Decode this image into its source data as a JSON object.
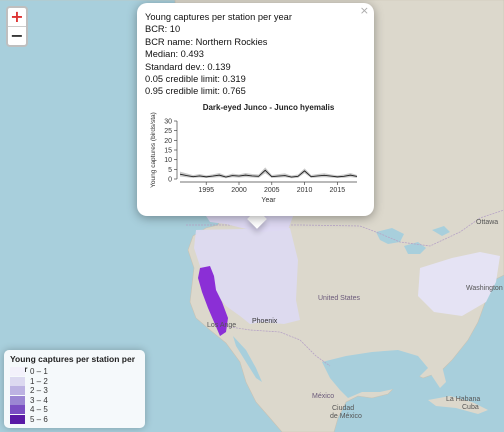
{
  "map": {
    "labels": {
      "united_states": "United States",
      "ottawa": "Ottawa",
      "washington": "Washington",
      "phoenix": "Phoenix",
      "los_angeles": "Los Ange",
      "mexico": "México",
      "ciudad": "Ciudad",
      "de_mexico": "de México",
      "la_habana": "La Habana",
      "cuba": "Cuba"
    },
    "zoom_in": "+",
    "zoom_out": "−",
    "colors": {
      "ocean": "#a8cfdc",
      "land": "#dcd8cc",
      "range_1_2": "#dcdaf0",
      "range_northern_rockies": "#ddd8f2",
      "range_4_5": "#8b2fd6"
    }
  },
  "popup": {
    "close_label": "×",
    "lines": [
      "Young captures per station per year",
      "BCR: 10",
      "BCR name: Northern Rockies",
      "Median: 0.493",
      "Standard dev.: 0.139",
      "0.05 credible limit: 0.319",
      "0.95 credible limit: 0.765"
    ]
  },
  "chart_data": {
    "type": "line",
    "title": "Dark-eyed Junco - Junco hyemalis",
    "xlabel": "Year",
    "ylabel": "Young captures (birds/sta)",
    "xlim": [
      1991,
      2018
    ],
    "ylim": [
      0,
      30
    ],
    "yticks": [
      0,
      5,
      10,
      15,
      20,
      25,
      30
    ],
    "xticks": [
      1995,
      2000,
      2005,
      2010,
      2015
    ],
    "series": [
      {
        "x": [
          1991,
          1992,
          1993,
          1994,
          1995,
          1996,
          1997,
          1998,
          1999,
          2000,
          2001,
          2002,
          2003,
          2004,
          2005,
          2006,
          2007,
          2008,
          2009,
          2010,
          2011,
          2012,
          2013,
          2014,
          2015,
          2016,
          2017,
          2018
        ],
        "values": [
          2.5,
          1.8,
          1.2,
          1.6,
          1.1,
          1.5,
          2.0,
          1.0,
          1.8,
          1.5,
          2.0,
          1.6,
          1.4,
          4.5,
          1.2,
          1.5,
          1.8,
          1.0,
          1.4,
          4.2,
          1.2,
          1.6,
          1.9,
          1.5,
          1.1,
          1.4,
          2.0,
          1.3
        ],
        "lower": [
          1.3,
          0.9,
          0.5,
          0.8,
          0.5,
          0.7,
          1.0,
          0.4,
          0.9,
          0.7,
          1.0,
          0.8,
          0.6,
          3.0,
          0.5,
          0.7,
          0.9,
          0.4,
          0.6,
          3.0,
          0.5,
          0.8,
          0.9,
          0.7,
          0.5,
          0.6,
          1.0,
          0.6
        ],
        "upper": [
          3.8,
          2.9,
          2.0,
          2.6,
          1.9,
          2.4,
          3.1,
          1.8,
          2.8,
          2.4,
          3.1,
          2.6,
          2.3,
          6.0,
          2.1,
          2.5,
          2.9,
          1.8,
          2.3,
          5.5,
          2.1,
          2.6,
          3.0,
          2.4,
          1.9,
          2.3,
          3.1,
          2.1
        ]
      }
    ]
  },
  "legend": {
    "title": "Young captures per station per year",
    "items": [
      {
        "label": "0 – 1",
        "color": "#f3f1fb"
      },
      {
        "label": "1 – 2",
        "color": "#dcd9f0"
      },
      {
        "label": "2 – 3",
        "color": "#bcb2e2"
      },
      {
        "label": "3 – 4",
        "color": "#9b86d3"
      },
      {
        "label": "4 – 5",
        "color": "#7a4ec3"
      },
      {
        "label": "5 – 6",
        "color": "#5a1aa6"
      }
    ]
  }
}
